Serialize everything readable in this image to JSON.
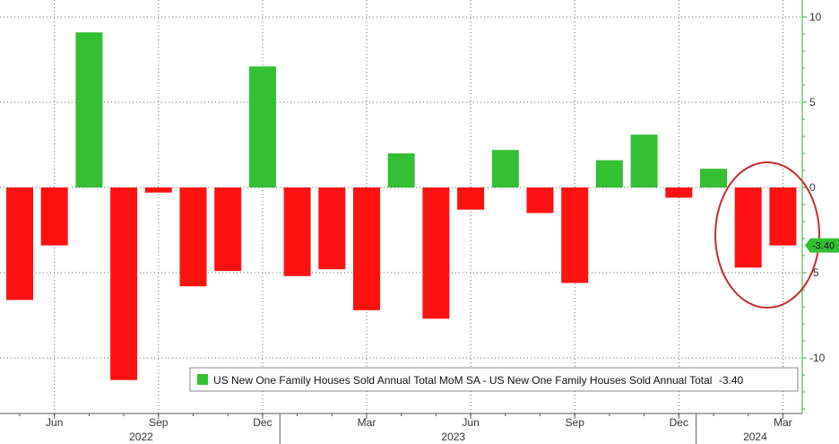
{
  "chart_data": {
    "type": "bar",
    "categories": [
      "May 2022",
      "Jun 2022",
      "Jul 2022",
      "Aug 2022",
      "Sep 2022",
      "Oct 2022",
      "Nov 2022",
      "Dec 2022",
      "Jan 2023",
      "Feb 2023",
      "Mar 2023",
      "Apr 2023",
      "May 2023",
      "Jun 2023",
      "Jul 2023",
      "Aug 2023",
      "Sep 2023",
      "Oct 2023",
      "Nov 2023",
      "Dec 2023",
      "Jan 2024",
      "Feb 2024",
      "Mar 2024"
    ],
    "values": [
      -6.6,
      -3.4,
      9.1,
      -11.3,
      -0.3,
      -5.8,
      -4.9,
      7.1,
      -5.2,
      -4.8,
      -7.2,
      2.0,
      -7.7,
      -1.3,
      2.2,
      -1.5,
      -5.6,
      1.6,
      3.1,
      -0.6,
      1.1,
      -4.7,
      -3.4
    ],
    "ylim": [
      -13,
      10.5
    ],
    "y_ticks": [
      10,
      5,
      0,
      -5,
      -10
    ],
    "y_tick_labels": [
      "10",
      "5",
      "0",
      "-5",
      "-10"
    ],
    "x_tick_labels": [
      {
        "label": "Jun",
        "index": 1
      },
      {
        "label": "Sep",
        "index": 4
      },
      {
        "label": "Dec",
        "index": 7
      },
      {
        "label": "Mar",
        "index": 10
      },
      {
        "label": "Jun",
        "index": 13
      },
      {
        "label": "Sep",
        "index": 16
      },
      {
        "label": "Dec",
        "index": 19
      },
      {
        "label": "Mar",
        "index": 22
      }
    ],
    "year_labels": [
      {
        "label": "2022",
        "center_index": 3.5
      },
      {
        "label": "2023",
        "center_index": 12.5
      },
      {
        "label": "2024",
        "center_index": 21.2
      }
    ],
    "year_separators_index": [
      7.5,
      19.5
    ],
    "legend": {
      "text": "US New One Family Houses Sold Annual Total MoM SA - US New One Family Houses Sold Annual Total",
      "value": "-3.40",
      "placement": "bottom-right"
    },
    "last_value_label": "-3.40",
    "highlight_indices": [
      21,
      22
    ],
    "grid": true,
    "y_axis_side": "right",
    "colors": {
      "positive": "#33c033",
      "negative": "#ff1111",
      "axis": "#33b233",
      "grid": "#666666",
      "highlight": "#c22d2d"
    }
  }
}
